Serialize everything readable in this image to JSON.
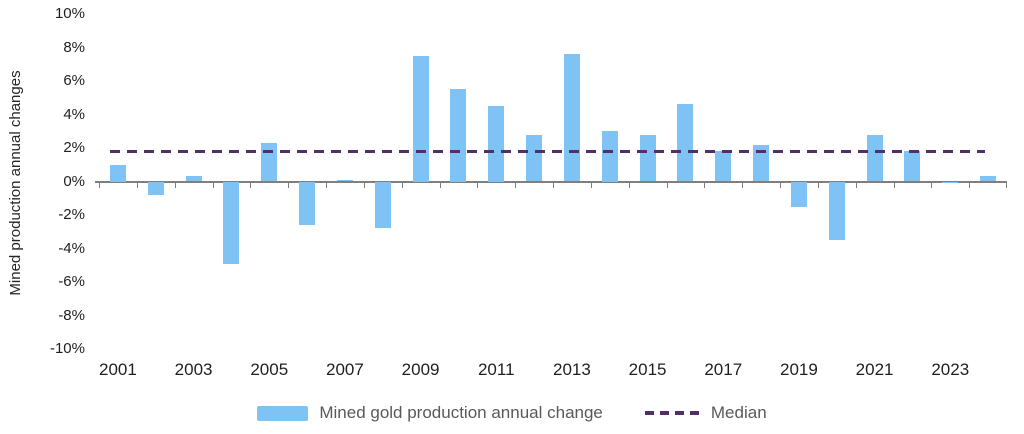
{
  "chart_data": {
    "type": "bar",
    "title": "",
    "xlabel": "",
    "ylabel": "Mined production annual changes",
    "x": [
      2001,
      2002,
      2003,
      2004,
      2005,
      2006,
      2007,
      2008,
      2009,
      2010,
      2011,
      2012,
      2013,
      2014,
      2015,
      2016,
      2017,
      2018,
      2019,
      2020,
      2021,
      2022,
      2023,
      2024
    ],
    "series": [
      {
        "name": "Mined gold production annual change",
        "values": [
          1.0,
          -0.8,
          0.3,
          -4.9,
          2.3,
          -2.6,
          0.1,
          -2.8,
          7.5,
          5.5,
          4.5,
          2.8,
          7.6,
          3.0,
          2.8,
          4.6,
          1.8,
          2.2,
          -1.5,
          -3.5,
          2.8,
          1.8,
          -0.1,
          0.3
        ]
      }
    ],
    "median_label": "Median",
    "median_value": 1.8,
    "ylim": [
      -10,
      10
    ],
    "y_tick_step": 2,
    "y_ticks": [
      "10%",
      "8%",
      "6%",
      "4%",
      "2%",
      "0%",
      "-2%",
      "-4%",
      "-6%",
      "-8%",
      "-10%"
    ],
    "x_ticks": [
      "2001",
      "2003",
      "2005",
      "2007",
      "2009",
      "2011",
      "2013",
      "2015",
      "2017",
      "2019",
      "2021",
      "2023"
    ],
    "grid": "off",
    "legend_position": "bottom-center",
    "colors": {
      "bar": "#7EC3F4",
      "median": "#523067",
      "axis": "#7f7f7f",
      "tick_text": "#1f1f1f",
      "legend_text": "#595959"
    }
  }
}
